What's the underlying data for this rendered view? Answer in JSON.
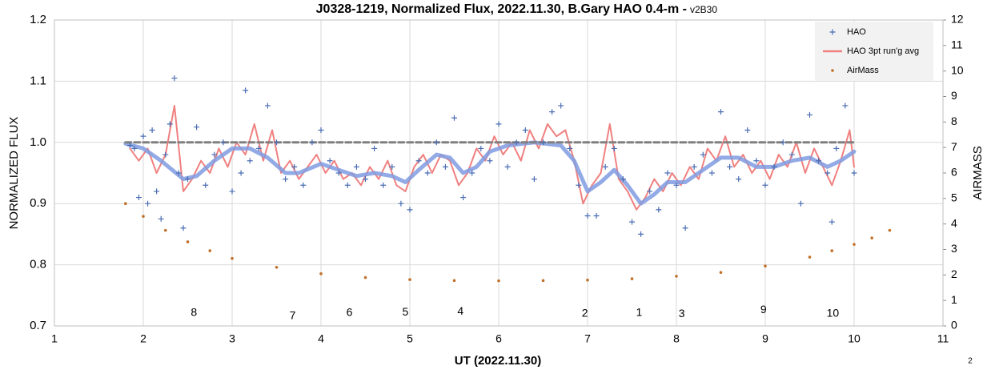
{
  "chart_data": {
    "type": "scatter",
    "title": "J0328-1219, Normalized Flux, 2022.11.30, B.Gary HAO 0.4-m -",
    "subtitle": "v2B30",
    "xlabel": "UT (2022.11.30)",
    "ylabel": "NORMALIZED FLUX",
    "y2label": "AIRMASS",
    "corner_note": "2",
    "xlim": [
      1,
      11
    ],
    "xticks": [
      1,
      2,
      3,
      4,
      5,
      6,
      7,
      8,
      9,
      10,
      11
    ],
    "ylim": [
      0.7,
      1.2
    ],
    "yticks": [
      0.7,
      0.8,
      0.9,
      {
        "value": 1.0,
        "label": "1.0"
      },
      1.1,
      1.2
    ],
    "y2lim": [
      0,
      12
    ],
    "y2ticks": [
      0,
      1,
      2,
      3,
      4,
      5,
      6,
      7,
      8,
      9,
      10,
      11,
      12
    ],
    "grid": true,
    "legend": "upper right",
    "annotations": [
      {
        "text": "8",
        "x": 2.57,
        "y": 0.721
      },
      {
        "text": "7",
        "x": 3.68,
        "y": 0.716
      },
      {
        "text": "6",
        "x": 4.32,
        "y": 0.721
      },
      {
        "text": "5",
        "x": 4.95,
        "y": 0.722
      },
      {
        "text": "4",
        "x": 5.57,
        "y": 0.723
      },
      {
        "text": "2",
        "x": 6.97,
        "y": 0.72
      },
      {
        "text": "1",
        "x": 7.58,
        "y": 0.721
      },
      {
        "text": "3",
        "x": 8.06,
        "y": 0.719
      },
      {
        "text": "9",
        "x": 8.98,
        "y": 0.726
      },
      {
        "text": "10",
        "x": 9.76,
        "y": 0.72
      }
    ],
    "series": [
      {
        "name": "HAO",
        "kind": "scatter",
        "marker": "+",
        "color": "#4a6cb3",
        "x": [
          1.85,
          1.9,
          1.95,
          2.0,
          2.05,
          2.1,
          2.15,
          2.2,
          2.25,
          2.3,
          2.35,
          2.4,
          2.45,
          2.5,
          2.6,
          2.7,
          2.8,
          2.9,
          3.0,
          3.1,
          3.15,
          3.2,
          3.3,
          3.4,
          3.5,
          3.6,
          3.7,
          3.8,
          3.9,
          4.0,
          4.1,
          4.2,
          4.3,
          4.4,
          4.5,
          4.6,
          4.7,
          4.8,
          4.9,
          5.0,
          5.1,
          5.2,
          5.3,
          5.4,
          5.5,
          5.6,
          5.7,
          5.8,
          5.9,
          6.0,
          6.1,
          6.2,
          6.3,
          6.4,
          6.5,
          6.6,
          6.7,
          6.8,
          6.9,
          7.0,
          7.1,
          7.2,
          7.3,
          7.4,
          7.5,
          7.6,
          7.7,
          7.8,
          7.9,
          8.0,
          8.1,
          8.2,
          8.3,
          8.4,
          8.5,
          8.6,
          8.7,
          8.8,
          8.9,
          9.0,
          9.1,
          9.2,
          9.3,
          9.4,
          9.5,
          9.6,
          9.7,
          9.75,
          9.8,
          9.9,
          10.0
        ],
        "values": [
          0.995,
          0.99,
          0.91,
          1.01,
          0.9,
          1.02,
          0.92,
          0.875,
          0.98,
          1.03,
          1.105,
          0.95,
          0.86,
          0.94,
          1.025,
          0.93,
          0.98,
          1.0,
          0.92,
          0.95,
          1.085,
          0.97,
          0.99,
          1.06,
          1.0,
          0.94,
          0.96,
          0.93,
          1.0,
          1.02,
          0.97,
          0.95,
          0.93,
          0.96,
          0.94,
          0.99,
          0.93,
          0.96,
          0.9,
          0.89,
          0.97,
          0.95,
          1.0,
          0.96,
          1.04,
          0.91,
          0.95,
          0.99,
          0.97,
          1.03,
          0.96,
          1.0,
          1.02,
          0.94,
          1.0,
          1.05,
          1.06,
          0.99,
          0.93,
          0.88,
          0.88,
          0.96,
          0.99,
          0.94,
          0.87,
          0.85,
          0.92,
          0.89,
          0.95,
          0.93,
          0.86,
          0.96,
          0.98,
          0.95,
          1.05,
          0.96,
          0.94,
          1.02,
          0.97,
          0.93,
          0.96,
          1.0,
          0.98,
          0.9,
          1.045,
          0.97,
          0.95,
          0.87,
          0.99,
          1.06,
          0.95
        ]
      },
      {
        "name": "HAO 3pt run'g avg",
        "kind": "line",
        "color": "#f08080",
        "x": [
          1.85,
          1.95,
          2.05,
          2.15,
          2.25,
          2.35,
          2.45,
          2.55,
          2.65,
          2.75,
          2.85,
          2.95,
          3.05,
          3.15,
          3.25,
          3.35,
          3.45,
          3.55,
          3.65,
          3.75,
          3.85,
          3.95,
          4.05,
          4.15,
          4.25,
          4.35,
          4.45,
          4.55,
          4.65,
          4.75,
          4.85,
          4.95,
          5.05,
          5.15,
          5.25,
          5.35,
          5.45,
          5.55,
          5.65,
          5.75,
          5.85,
          5.95,
          6.05,
          6.15,
          6.25,
          6.35,
          6.45,
          6.55,
          6.65,
          6.75,
          6.85,
          6.95,
          7.05,
          7.15,
          7.25,
          7.35,
          7.45,
          7.55,
          7.65,
          7.75,
          7.85,
          7.95,
          8.05,
          8.15,
          8.25,
          8.35,
          8.45,
          8.55,
          8.65,
          8.75,
          8.85,
          8.95,
          9.05,
          9.15,
          9.25,
          9.35,
          9.45,
          9.55,
          9.65,
          9.75,
          9.85,
          9.95,
          10.0
        ],
        "values": [
          0.99,
          0.97,
          0.99,
          0.95,
          0.98,
          1.06,
          0.92,
          0.94,
          0.97,
          0.95,
          0.99,
          0.96,
          1.0,
          0.98,
          1.03,
          0.97,
          1.02,
          0.95,
          0.97,
          0.94,
          0.96,
          0.98,
          0.95,
          0.97,
          0.94,
          0.95,
          0.93,
          0.96,
          0.94,
          0.97,
          0.93,
          0.92,
          0.96,
          0.98,
          0.95,
          0.98,
          0.97,
          0.93,
          0.95,
          0.99,
          0.97,
          1.01,
          0.98,
          1.0,
          0.97,
          1.02,
          0.99,
          1.03,
          1.01,
          1.02,
          0.97,
          0.9,
          0.93,
          0.95,
          1.03,
          0.94,
          0.92,
          0.89,
          0.91,
          0.94,
          0.92,
          0.95,
          0.93,
          0.96,
          0.94,
          0.99,
          0.97,
          1.01,
          0.96,
          0.98,
          0.95,
          0.97,
          0.94,
          0.98,
          0.96,
          1.0,
          0.95,
          0.99,
          0.96,
          0.93,
          0.97,
          1.02,
          0.96
        ]
      },
      {
        "kind": "line",
        "color": "#7f9be0",
        "width": 5,
        "x": [
          1.8,
          2.0,
          2.2,
          2.45,
          2.6,
          2.8,
          3.0,
          3.2,
          3.4,
          3.6,
          3.75,
          4.0,
          4.2,
          4.4,
          4.6,
          4.8,
          4.95,
          5.1,
          5.3,
          5.45,
          5.6,
          5.75,
          5.9,
          6.1,
          6.4,
          6.7,
          6.85,
          7.0,
          7.15,
          7.3,
          7.45,
          7.6,
          7.75,
          7.9,
          8.1,
          8.3,
          8.5,
          8.7,
          8.9,
          9.1,
          9.3,
          9.5,
          9.7,
          9.85,
          10.0
        ],
        "values": [
          0.998,
          0.99,
          0.97,
          0.94,
          0.945,
          0.97,
          0.99,
          0.99,
          0.975,
          0.95,
          0.95,
          0.965,
          0.955,
          0.945,
          0.95,
          0.945,
          0.935,
          0.955,
          0.98,
          0.975,
          0.95,
          0.96,
          0.985,
          0.995,
          1.0,
          0.995,
          0.97,
          0.92,
          0.935,
          0.955,
          0.93,
          0.9,
          0.915,
          0.935,
          0.935,
          0.955,
          0.975,
          0.975,
          0.96,
          0.96,
          0.97,
          0.975,
          0.96,
          0.97,
          0.985
        ]
      },
      {
        "kind": "line",
        "color": "#808080",
        "width": 3,
        "dashed": true,
        "x": [
          1.8,
          10.0
        ],
        "values": [
          1.0,
          1.0
        ]
      },
      {
        "name": "AirMass",
        "kind": "scatter",
        "marker": "dot",
        "color": "#c0702a",
        "axis": "y2",
        "x": [
          1.8,
          2.0,
          2.25,
          2.5,
          2.75,
          3.0,
          3.5,
          4.0,
          4.5,
          5.0,
          5.5,
          6.0,
          6.5,
          7.0,
          7.5,
          8.0,
          8.5,
          9.0,
          9.5,
          9.75,
          10.0,
          10.2,
          10.4
        ],
        "values": [
          4.8,
          4.3,
          3.75,
          3.3,
          2.95,
          2.65,
          2.3,
          2.05,
          1.9,
          1.82,
          1.78,
          1.77,
          1.78,
          1.8,
          1.85,
          1.95,
          2.1,
          2.35,
          2.7,
          2.95,
          3.2,
          3.45,
          3.75
        ]
      }
    ]
  }
}
